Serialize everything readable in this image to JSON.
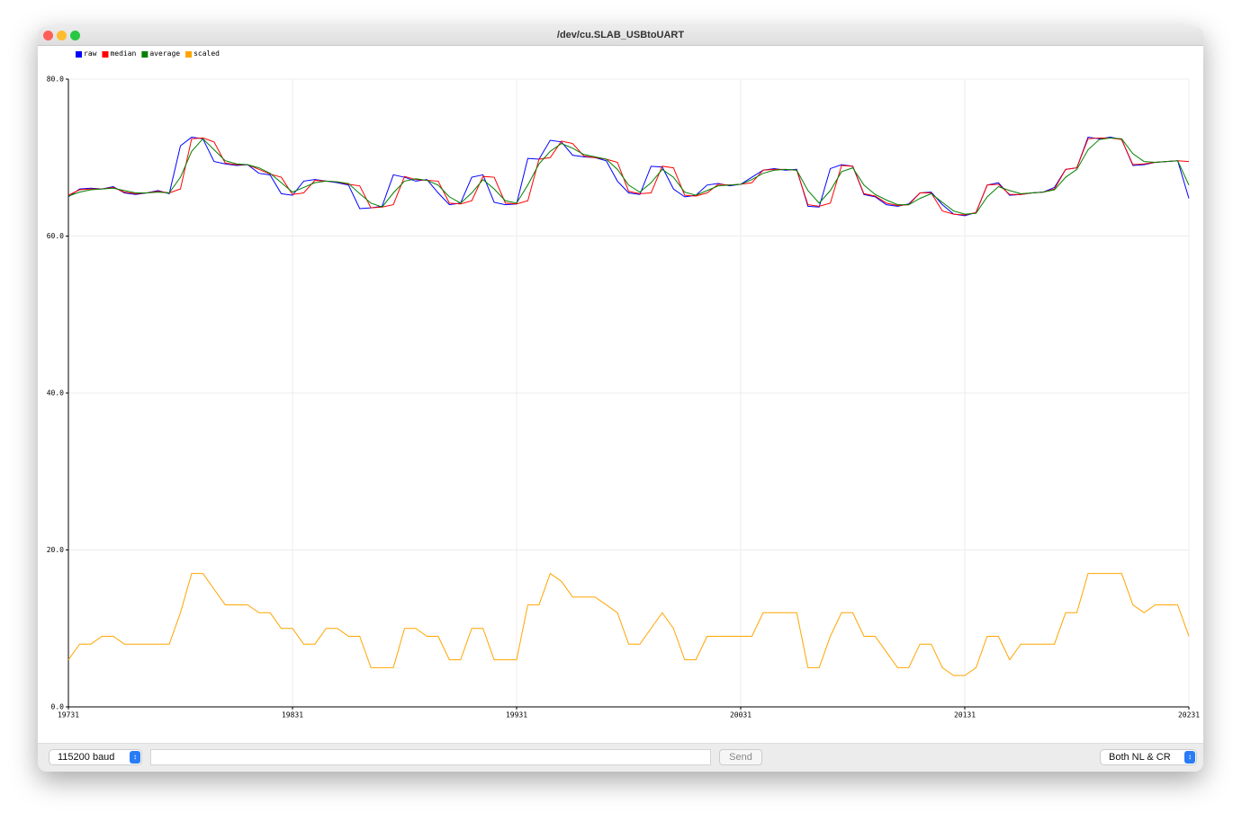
{
  "window": {
    "title": "/dev/cu.SLAB_USBtoUART",
    "baud": "115200 baud",
    "send": "Send",
    "line_ending": "Both NL & CR"
  },
  "chart_data": {
    "type": "line",
    "x": [
      19731,
      19736,
      19741,
      19746,
      19751,
      19756,
      19761,
      19766,
      19771,
      19776,
      19781,
      19786,
      19791,
      19796,
      19801,
      19806,
      19811,
      19816,
      19821,
      19826,
      19831,
      19836,
      19841,
      19846,
      19851,
      19856,
      19861,
      19866,
      19871,
      19876,
      19881,
      19886,
      19891,
      19896,
      19901,
      19906,
      19911,
      19916,
      19921,
      19926,
      19931,
      19936,
      19941,
      19946,
      19951,
      19956,
      19961,
      19966,
      19971,
      19976,
      19981,
      19986,
      19991,
      19996,
      20001,
      20006,
      20011,
      20016,
      20021,
      20026,
      20031,
      20036,
      20041,
      20046,
      20051,
      20056,
      20061,
      20066,
      20071,
      20076,
      20081,
      20086,
      20091,
      20096,
      20101,
      20106,
      20111,
      20116,
      20121,
      20126,
      20131,
      20136,
      20141,
      20146,
      20151,
      20156,
      20161,
      20166,
      20171,
      20176,
      20181,
      20186,
      20191,
      20196,
      20201,
      20206,
      20211,
      20216,
      20221,
      20226,
      20231
    ],
    "series": [
      {
        "name": "raw",
        "color": "#0000ff",
        "values": [
          65.0,
          66.0,
          66.1,
          66.0,
          66.3,
          65.5,
          65.3,
          65.5,
          65.8,
          65.4,
          71.5,
          72.6,
          72.4,
          69.5,
          69.2,
          69.0,
          69.1,
          68.0,
          67.8,
          65.4,
          65.2,
          67.0,
          67.2,
          67.0,
          66.8,
          66.5,
          63.5,
          63.6,
          63.8,
          67.8,
          67.5,
          67.0,
          67.2,
          65.5,
          64.0,
          64.2,
          67.5,
          67.8,
          64.3,
          64.0,
          64.1,
          69.9,
          69.8,
          72.2,
          72.0,
          70.3,
          70.1,
          70.0,
          69.6,
          67.0,
          65.5,
          65.3,
          68.9,
          68.8,
          66.0,
          65.0,
          65.2,
          66.5,
          66.7,
          66.4,
          66.6,
          67.5,
          68.4,
          68.6,
          68.4,
          68.5,
          63.8,
          63.7,
          68.6,
          69.1,
          68.9,
          65.3,
          65.0,
          64.0,
          63.8,
          64.1,
          65.5,
          65.6,
          64.0,
          62.8,
          62.6,
          63.0,
          66.5,
          66.8,
          65.2,
          65.3,
          65.5,
          65.6,
          66.2,
          68.5,
          68.7,
          72.6,
          72.4,
          72.6,
          72.3,
          69.0,
          69.1,
          69.4,
          69.5,
          69.6,
          64.8
        ]
      },
      {
        "name": "median",
        "color": "#ff0000",
        "values": [
          65.2,
          65.9,
          66.0,
          66.0,
          66.2,
          65.6,
          65.4,
          65.5,
          65.7,
          65.5,
          66.0,
          72.4,
          72.5,
          72.0,
          69.3,
          69.1,
          69.1,
          68.5,
          67.9,
          67.5,
          65.3,
          65.5,
          67.1,
          67.0,
          66.9,
          66.6,
          66.4,
          63.6,
          63.7,
          64.0,
          67.6,
          67.2,
          67.1,
          67.0,
          64.2,
          64.1,
          64.5,
          67.6,
          67.5,
          64.2,
          64.1,
          64.5,
          69.8,
          70.0,
          72.1,
          71.8,
          70.2,
          70.0,
          69.8,
          69.4,
          65.7,
          65.4,
          65.5,
          68.9,
          68.7,
          65.2,
          65.1,
          65.5,
          66.6,
          66.5,
          66.6,
          66.8,
          68.4,
          68.5,
          68.5,
          68.4,
          64.0,
          63.8,
          64.2,
          69.0,
          68.9,
          65.4,
          65.1,
          64.2,
          63.9,
          64.0,
          65.5,
          65.5,
          63.2,
          62.8,
          62.7,
          63.0,
          66.5,
          66.6,
          65.3,
          65.3,
          65.5,
          65.6,
          66.0,
          68.5,
          68.7,
          72.4,
          72.5,
          72.5,
          72.3,
          69.1,
          69.2,
          69.4,
          69.5,
          69.6,
          69.5
        ]
      },
      {
        "name": "average",
        "color": "#008000",
        "values": [
          65.1,
          65.6,
          65.9,
          66.0,
          66.1,
          65.8,
          65.5,
          65.5,
          65.6,
          65.5,
          67.5,
          70.8,
          72.4,
          71.0,
          69.6,
          69.2,
          69.1,
          68.7,
          68.0,
          66.8,
          65.6,
          66.2,
          66.8,
          67.0,
          66.9,
          66.7,
          65.4,
          64.2,
          63.7,
          65.5,
          67.0,
          67.3,
          67.1,
          66.5,
          65.0,
          64.2,
          65.5,
          67.2,
          66.0,
          64.5,
          64.2,
          66.5,
          69.2,
          70.8,
          71.8,
          71.2,
          70.4,
          70.1,
          69.8,
          68.5,
          66.5,
          65.6,
          66.8,
          68.5,
          67.5,
          65.6,
          65.2,
          65.8,
          66.4,
          66.5,
          66.6,
          67.2,
          68.0,
          68.4,
          68.5,
          68.4,
          65.8,
          64.2,
          65.8,
          68.2,
          68.7,
          66.5,
          65.3,
          64.6,
          64.0,
          64.0,
          64.8,
          65.4,
          64.3,
          63.2,
          62.8,
          62.9,
          65.0,
          66.3,
          65.8,
          65.4,
          65.5,
          65.6,
          65.9,
          67.5,
          68.5,
          71.0,
          72.3,
          72.5,
          72.4,
          70.5,
          69.5,
          69.4,
          69.5,
          69.6,
          66.5
        ]
      },
      {
        "name": "scaled",
        "color": "#ffa500",
        "values": [
          6,
          8,
          8,
          9,
          9,
          8,
          8,
          8,
          8,
          8,
          12,
          17,
          17,
          15,
          13,
          13,
          13,
          12,
          12,
          10,
          10,
          8,
          8,
          10,
          10,
          9,
          9,
          5,
          5,
          5,
          10,
          10,
          9,
          9,
          6,
          6,
          10,
          10,
          6,
          6,
          6,
          13,
          13,
          17,
          16,
          14,
          14,
          14,
          13,
          12,
          8,
          8,
          10,
          12,
          10,
          6,
          6,
          9,
          9,
          9,
          9,
          9,
          12,
          12,
          12,
          12,
          5,
          5,
          9,
          12,
          12,
          9,
          9,
          7,
          5,
          5,
          8,
          8,
          5,
          4,
          4,
          5,
          9,
          9,
          6,
          8,
          8,
          8,
          8,
          12,
          12,
          17,
          17,
          17,
          17,
          13,
          12,
          13,
          13,
          13,
          9
        ]
      }
    ],
    "xlim": [
      19731,
      20231
    ],
    "xticks": [
      19731,
      19831,
      19931,
      20031,
      20131,
      20231
    ],
    "ylim": [
      0,
      80
    ],
    "yticks": [
      {
        "value": 0,
        "label": "0.0"
      },
      {
        "value": 20,
        "label": "20.0"
      },
      {
        "value": 40,
        "label": "40.0"
      },
      {
        "value": 60,
        "label": "60.0"
      },
      {
        "value": 80,
        "label": "80.0"
      }
    ],
    "grid": true
  }
}
